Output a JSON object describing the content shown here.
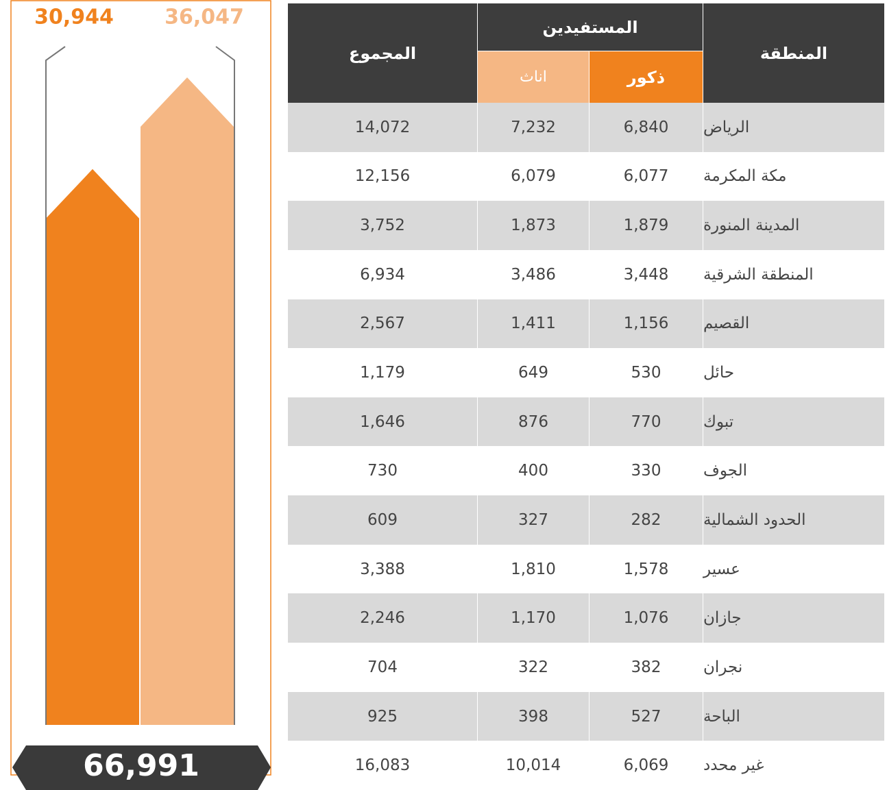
{
  "infographic": {
    "male": {
      "value": 30944,
      "label": "30,944"
    },
    "female": {
      "value": 36047,
      "label": "36,047"
    },
    "total": "66,991"
  },
  "table": {
    "header": {
      "region": "المنطقة",
      "beneficiaries": "المستفيدين",
      "male": "ذكور",
      "female": "اناث",
      "total": "المجموع"
    },
    "rows": [
      [
        "الرياض",
        "6,840",
        "7,232",
        "14,072"
      ],
      [
        "مكة المكرمة",
        "6,077",
        "6,079",
        "12,156"
      ],
      [
        "المدينة المنورة",
        "1,879",
        "1,873",
        "3,752"
      ],
      [
        "المنطقة الشرقية",
        "3,448",
        "3,486",
        "6,934"
      ],
      [
        "القصيم",
        "1,156",
        "1,411",
        "2,567"
      ],
      [
        "حائل",
        "530",
        "649",
        "1,179"
      ],
      [
        "تبوك",
        "770",
        "876",
        "1,646"
      ],
      [
        "الجوف",
        "330",
        "400",
        "730"
      ],
      [
        "الحدود الشمالية",
        "282",
        "327",
        "609"
      ],
      [
        "عسير",
        "1,578",
        "1,810",
        "3,388"
      ],
      [
        "جازان",
        "1,076",
        "1,170",
        "2,246"
      ],
      [
        "نجران",
        "382",
        "322",
        "704"
      ],
      [
        "الباحة",
        "527",
        "398",
        "925"
      ],
      [
        "غير محدد",
        "6,069",
        "10,014",
        "16,083"
      ]
    ]
  }
}
